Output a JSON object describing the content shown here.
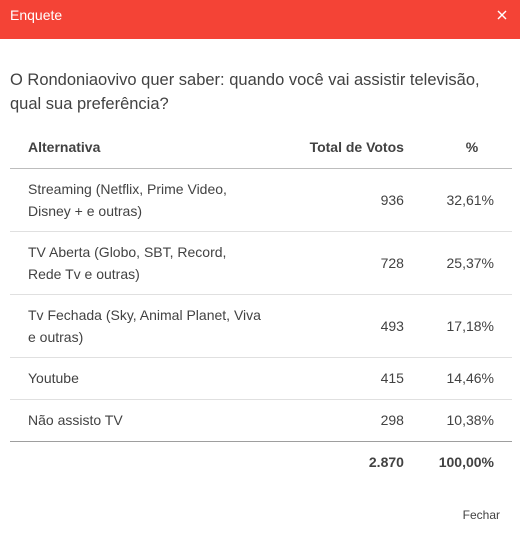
{
  "header": {
    "title": "Enquete",
    "close_icon": "close-icon",
    "color": "#f44336"
  },
  "question": "O Rondoniaovivo quer saber: quando você vai assistir televisão, qual sua preferência?",
  "table": {
    "columns": [
      "Alternativa",
      "Total de Votos",
      "%"
    ],
    "rows": [
      {
        "alternative": "Streaming (Netflix, Prime Video, Disney + e outras)",
        "votes": "936",
        "percent": "32,61%"
      },
      {
        "alternative": "TV Aberta (Globo, SBT, Record, Rede Tv e outras)",
        "votes": "728",
        "percent": "25,37%"
      },
      {
        "alternative": "Tv Fechada (Sky, Animal Planet, Viva e outras)",
        "votes": "493",
        "percent": "17,18%"
      },
      {
        "alternative": "Youtube",
        "votes": "415",
        "percent": "14,46%"
      },
      {
        "alternative": "Não assisto TV",
        "votes": "298",
        "percent": "10,38%"
      }
    ],
    "total": {
      "votes": "2.870",
      "percent": "100,00%"
    }
  },
  "footer": {
    "close_label": "Fechar"
  }
}
